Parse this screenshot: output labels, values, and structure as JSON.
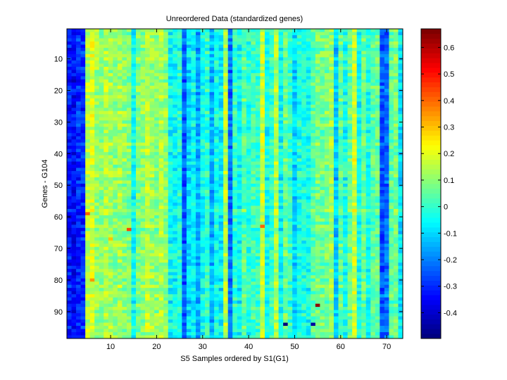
{
  "chart_data": {
    "type": "heatmap",
    "title": "Unreordered Data (standardized genes)",
    "xlabel": "S5 Samples ordered by S1(G1)",
    "ylabel": "Genes - G104",
    "n_columns": 73,
    "n_rows": 98,
    "xlim": [
      0.5,
      73.5
    ],
    "ylim": [
      0.5,
      98.5
    ],
    "x_ticks": [
      10,
      20,
      30,
      40,
      50,
      60,
      70
    ],
    "y_ticks": [
      10,
      20,
      30,
      40,
      50,
      60,
      70,
      80,
      90
    ],
    "colormap": "jet",
    "clim": [
      -0.497,
      0.67
    ],
    "colorbar_ticks": [
      -0.4,
      -0.3,
      -0.2,
      -0.1,
      0,
      0.1,
      0.2,
      0.3,
      0.4,
      0.5,
      0.6
    ],
    "column_mean_profile": [
      -0.32,
      -0.35,
      -0.3,
      -0.3,
      0.15,
      0.18,
      0.12,
      0.1,
      0.14,
      0.12,
      0.1,
      0.13,
      0.1,
      0.08,
      -0.04,
      0.08,
      0.1,
      0.15,
      0.12,
      0.1,
      0.14,
      0.1,
      -0.05,
      -0.06,
      -0.02,
      -0.25,
      -0.1,
      -0.06,
      -0.15,
      -0.05,
      0.0,
      -0.14,
      -0.04,
      -0.08,
      0.15,
      -0.22,
      0.0,
      -0.05,
      0.05,
      -0.02,
      0.02,
      0.0,
      0.18,
      -0.04,
      0.0,
      0.14,
      -0.05,
      0.06,
      0.0,
      -0.1,
      -0.03,
      -0.02,
      -0.04,
      0.04,
      0.08,
      0.07,
      0.08,
      0.12,
      -0.12,
      0.05,
      -0.03,
      0.06,
      0.17,
      -0.04,
      0.06,
      -0.03,
      0.05,
      0.06,
      -0.25,
      -0.22,
      0.05,
      0.08,
      -0.08
    ],
    "outliers": [
      {
        "col": 14,
        "row": 64,
        "value": 0.45
      },
      {
        "col": 55,
        "row": 88,
        "value": 0.65
      },
      {
        "col": 43,
        "row": 63,
        "value": 0.4
      },
      {
        "col": 5,
        "row": 59,
        "value": 0.4
      },
      {
        "col": 6,
        "row": 80,
        "value": 0.35
      },
      {
        "col": 48,
        "row": 94,
        "value": -0.48
      },
      {
        "col": 54,
        "row": 94,
        "value": -0.45
      },
      {
        "col": 10,
        "row": 67,
        "value": 0.3
      }
    ]
  }
}
